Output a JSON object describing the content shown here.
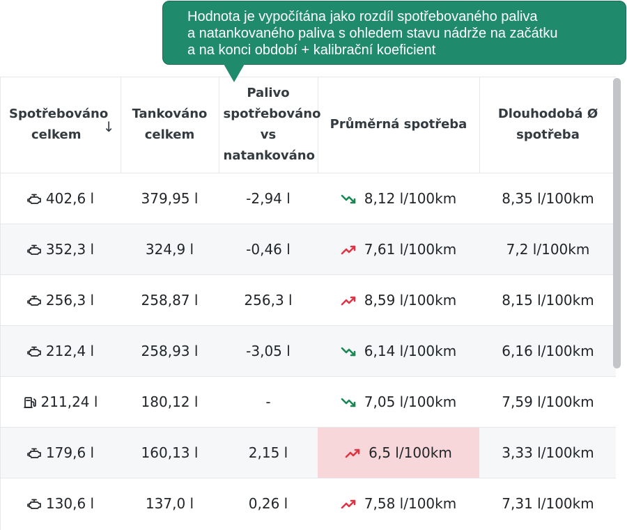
{
  "tooltip": {
    "lines": [
      "Hodnota je vypočítána jako rozdíl spotřebovaného paliva",
      "a natankovaného paliva s ohledem stavu nádrže na začátku",
      "a na konci období + kalibrační koeficient"
    ]
  },
  "table": {
    "headers": {
      "consumed_total": [
        "Spotřebováno",
        "celkem"
      ],
      "sort_indicator": "↓",
      "refueled_total": [
        "Tankováno",
        "celkem"
      ],
      "fuel_diff": [
        "Palivo",
        "spotřebováno",
        "vs",
        "natankováno"
      ],
      "avg_consumption": "Průměrná spotřeba",
      "longterm_consumption": [
        "Dlouhodobá Ø",
        "spotřeba"
      ]
    },
    "rows": [
      {
        "source_icon": "engine-icon",
        "consumed": "402,6 l",
        "refueled": "379,95 l",
        "diff": "-2,94 l",
        "trend": "down",
        "avg": "8,12 l/100km",
        "longterm": "8,35 l/100km",
        "highlight": false
      },
      {
        "source_icon": "engine-icon",
        "consumed": "352,3 l",
        "refueled": "324,9 l",
        "diff": "-0,46 l",
        "trend": "up",
        "avg": "7,61 l/100km",
        "longterm": "7,2 l/100km",
        "highlight": false
      },
      {
        "source_icon": "engine-icon",
        "consumed": "256,3 l",
        "refueled": "258,87 l",
        "diff": "256,3 l",
        "trend": "up",
        "avg": "8,59 l/100km",
        "longterm": "8,15 l/100km",
        "highlight": false
      },
      {
        "source_icon": "engine-icon",
        "consumed": "212,4 l",
        "refueled": "258,93 l",
        "diff": "-3,05 l",
        "trend": "down",
        "avg": "6,14 l/100km",
        "longterm": "6,16 l/100km",
        "highlight": false
      },
      {
        "source_icon": "fuel-pump-icon",
        "consumed": "211,24 l",
        "refueled": "180,12 l",
        "diff": "-",
        "trend": "down",
        "avg": "7,05 l/100km",
        "longterm": "7,59 l/100km",
        "highlight": false
      },
      {
        "source_icon": "engine-icon",
        "consumed": "179,6 l",
        "refueled": "160,13 l",
        "diff": "2,15 l",
        "trend": "up",
        "avg": "6,5 l/100km",
        "longterm": "3,33 l/100km",
        "highlight": true
      },
      {
        "source_icon": "engine-icon",
        "consumed": "130,6 l",
        "refueled": "137,0 l",
        "diff": "0,26 l",
        "trend": "up",
        "avg": "7,58 l/100km",
        "longterm": "7,31 l/100km",
        "highlight": false
      }
    ]
  },
  "colors": {
    "tooltip_bg": "#1f8a6c",
    "trend_up": "#dc3545",
    "trend_down": "#198754",
    "highlight_bg": "#f8d7da"
  }
}
